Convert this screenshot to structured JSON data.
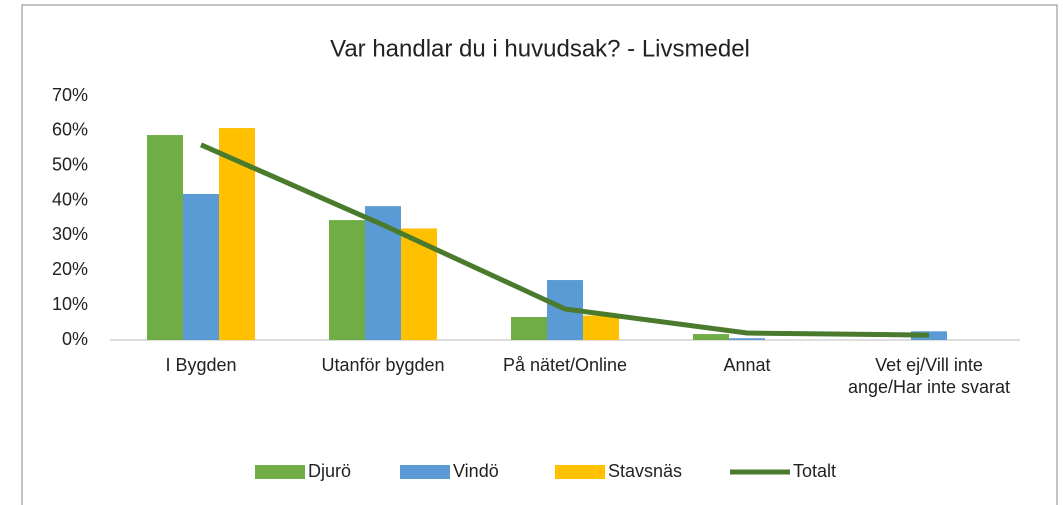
{
  "chart_data": {
    "type": "bar",
    "title": "Var handlar du i huvudsak? - Livsmedel",
    "categories": [
      "I Bygden",
      "Utanför bygden",
      "På nätet/Online",
      "Annat",
      "Vet ej/Vill inte ange/Har inte svarat"
    ],
    "series": [
      {
        "name": "Djurö",
        "color": "#70ad47",
        "type": "bar",
        "values": [
          58.8,
          34.4,
          6.6,
          1.7,
          0
        ]
      },
      {
        "name": "Vindö",
        "color": "#5b9bd5",
        "type": "bar",
        "values": [
          41.9,
          38.4,
          17.2,
          0.5,
          2.5
        ]
      },
      {
        "name": "Stavsnäs",
        "color": "#ffc000",
        "type": "bar",
        "values": [
          60.8,
          32,
          7,
          0,
          0
        ]
      },
      {
        "name": "Totalt",
        "color": "#4a7a2c",
        "type": "line",
        "values": [
          56,
          33,
          8.9,
          2,
          1.4
        ]
      }
    ],
    "ylim": [
      0,
      70
    ],
    "yticks": [
      {
        "value": 0,
        "label": "0%"
      },
      {
        "value": 10,
        "label": "10%"
      },
      {
        "value": 20,
        "label": "20%"
      },
      {
        "value": 30,
        "label": "30%"
      },
      {
        "value": 40,
        "label": "40%"
      },
      {
        "value": 50,
        "label": "50%"
      },
      {
        "value": 60,
        "label": "60%"
      },
      {
        "value": 70,
        "label": "70%"
      }
    ],
    "legend": "bottom"
  }
}
